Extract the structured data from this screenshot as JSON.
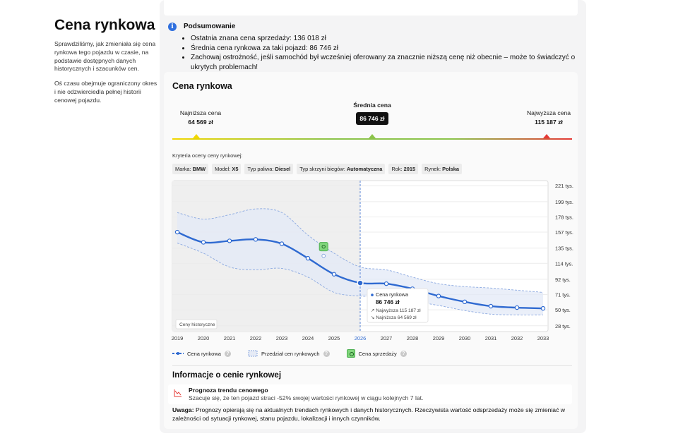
{
  "left": {
    "title": "Cena rynkowa",
    "desc1": "Sprawdziliśmy, jak zmieniała się cena rynkowa tego pojazdu w czasie, na podstawie dostępnych danych historycznych i szacunków cen.",
    "desc2": "Oś czasu obejmuje ograniczony okres i nie odzwierciedla pełnej historii cenowej pojazdu."
  },
  "summary": {
    "title": "Podsumowanie",
    "items": [
      "Ostatnia znana cena sprzedaży: 136 018 zł",
      "Średnia cena rynkowa za taki pojazd: 86 746 zł",
      "Zachowaj ostrożność, jeśli samochód był wcześniej oferowany za znacznie niższą cenę niż obecnie – może to świadczyć o ukrytych problemach!"
    ]
  },
  "card": {
    "title": "Cena rynkowa",
    "low_label": "Najniższa cena",
    "low_value": "64 569 zł",
    "mid_label": "Średnia cena",
    "mid_value": "86 746 zł",
    "high_label": "Najwyższa cena",
    "high_value": "115 187 zł",
    "criteria_title": "Kryteria oceny ceny rynkowej:",
    "chips": [
      {
        "label": "Marka:",
        "value": "BMW"
      },
      {
        "label": "Model:",
        "value": "X5"
      },
      {
        "label": "Typ paliwa:",
        "value": "Diesel"
      },
      {
        "label": "Typ skrzyni biegów:",
        "value": "Automatyczna"
      },
      {
        "label": "Rok:",
        "value": "2015"
      },
      {
        "label": "Rynek:",
        "value": "Polska"
      }
    ],
    "colors": {
      "low": "#f2d700",
      "mid": "#8bc34a",
      "high": "#e53935",
      "line": "#2f6ad1"
    }
  },
  "chart_data": {
    "type": "line",
    "x": [
      "2019",
      "2020",
      "2021",
      "2022",
      "2023",
      "2024",
      "2025",
      "2026",
      "2027",
      "2028",
      "2029",
      "2030",
      "2031",
      "2032",
      "2033"
    ],
    "y_tick_labels": [
      "221 tys.",
      "199 tys.",
      "178 tys.",
      "157 tys.",
      "135 tys.",
      "114 tys.",
      "92 tys.",
      "71 tys.",
      "50 tys.",
      "28 tys."
    ],
    "y_ticks": [
      221,
      199,
      178,
      157,
      135,
      114,
      92,
      71,
      50,
      28
    ],
    "ylim": [
      20,
      228
    ],
    "series": [
      {
        "name": "Cena rynkowa",
        "values": [
          157,
          143,
          145,
          147,
          141,
          121,
          99,
          87,
          86,
          79,
          69,
          61,
          55,
          53,
          52
        ]
      }
    ],
    "range_upper": [
      184,
      175,
      181,
      189,
      184,
      153,
      128,
      109,
      105,
      95,
      86,
      82,
      80,
      77,
      74
    ],
    "range_lower": [
      142,
      128,
      109,
      105,
      107,
      95,
      74,
      69,
      68,
      62,
      56,
      49,
      44,
      43,
      43
    ],
    "sale_point": {
      "x": "2024.6",
      "value": 136
    },
    "historical_until": "2026",
    "historical_label": "Ceny historyczne",
    "tooltip": {
      "title": "Cena rynkowa",
      "value": "86 746 zł",
      "high_label": "Najwyższa",
      "high_value": "115 187 zł",
      "low_label": "Najniższa",
      "low_value": "64 569 zł"
    },
    "legend": [
      "Cena rynkowa",
      "Przedział cen rynkowych",
      "Cena sprzedaży"
    ]
  },
  "info": {
    "title": "Informacje o cenie rynkowej",
    "forecast_title": "Prognoza trendu cenowego",
    "forecast_text": "Szacuje się, że ten pojazd straci -52% swojej wartości rynkowej w ciągu kolejnych 7 lat.",
    "note_label": "Uwaga:",
    "note_text": " Prognozy opierają się na aktualnych trendach rynkowych i danych historycznych. Rzeczywista wartość odsprzedaży może się zmieniać w zależności od sytuacji rynkowej, stanu pojazdu, lokalizacji i innych czynników."
  }
}
